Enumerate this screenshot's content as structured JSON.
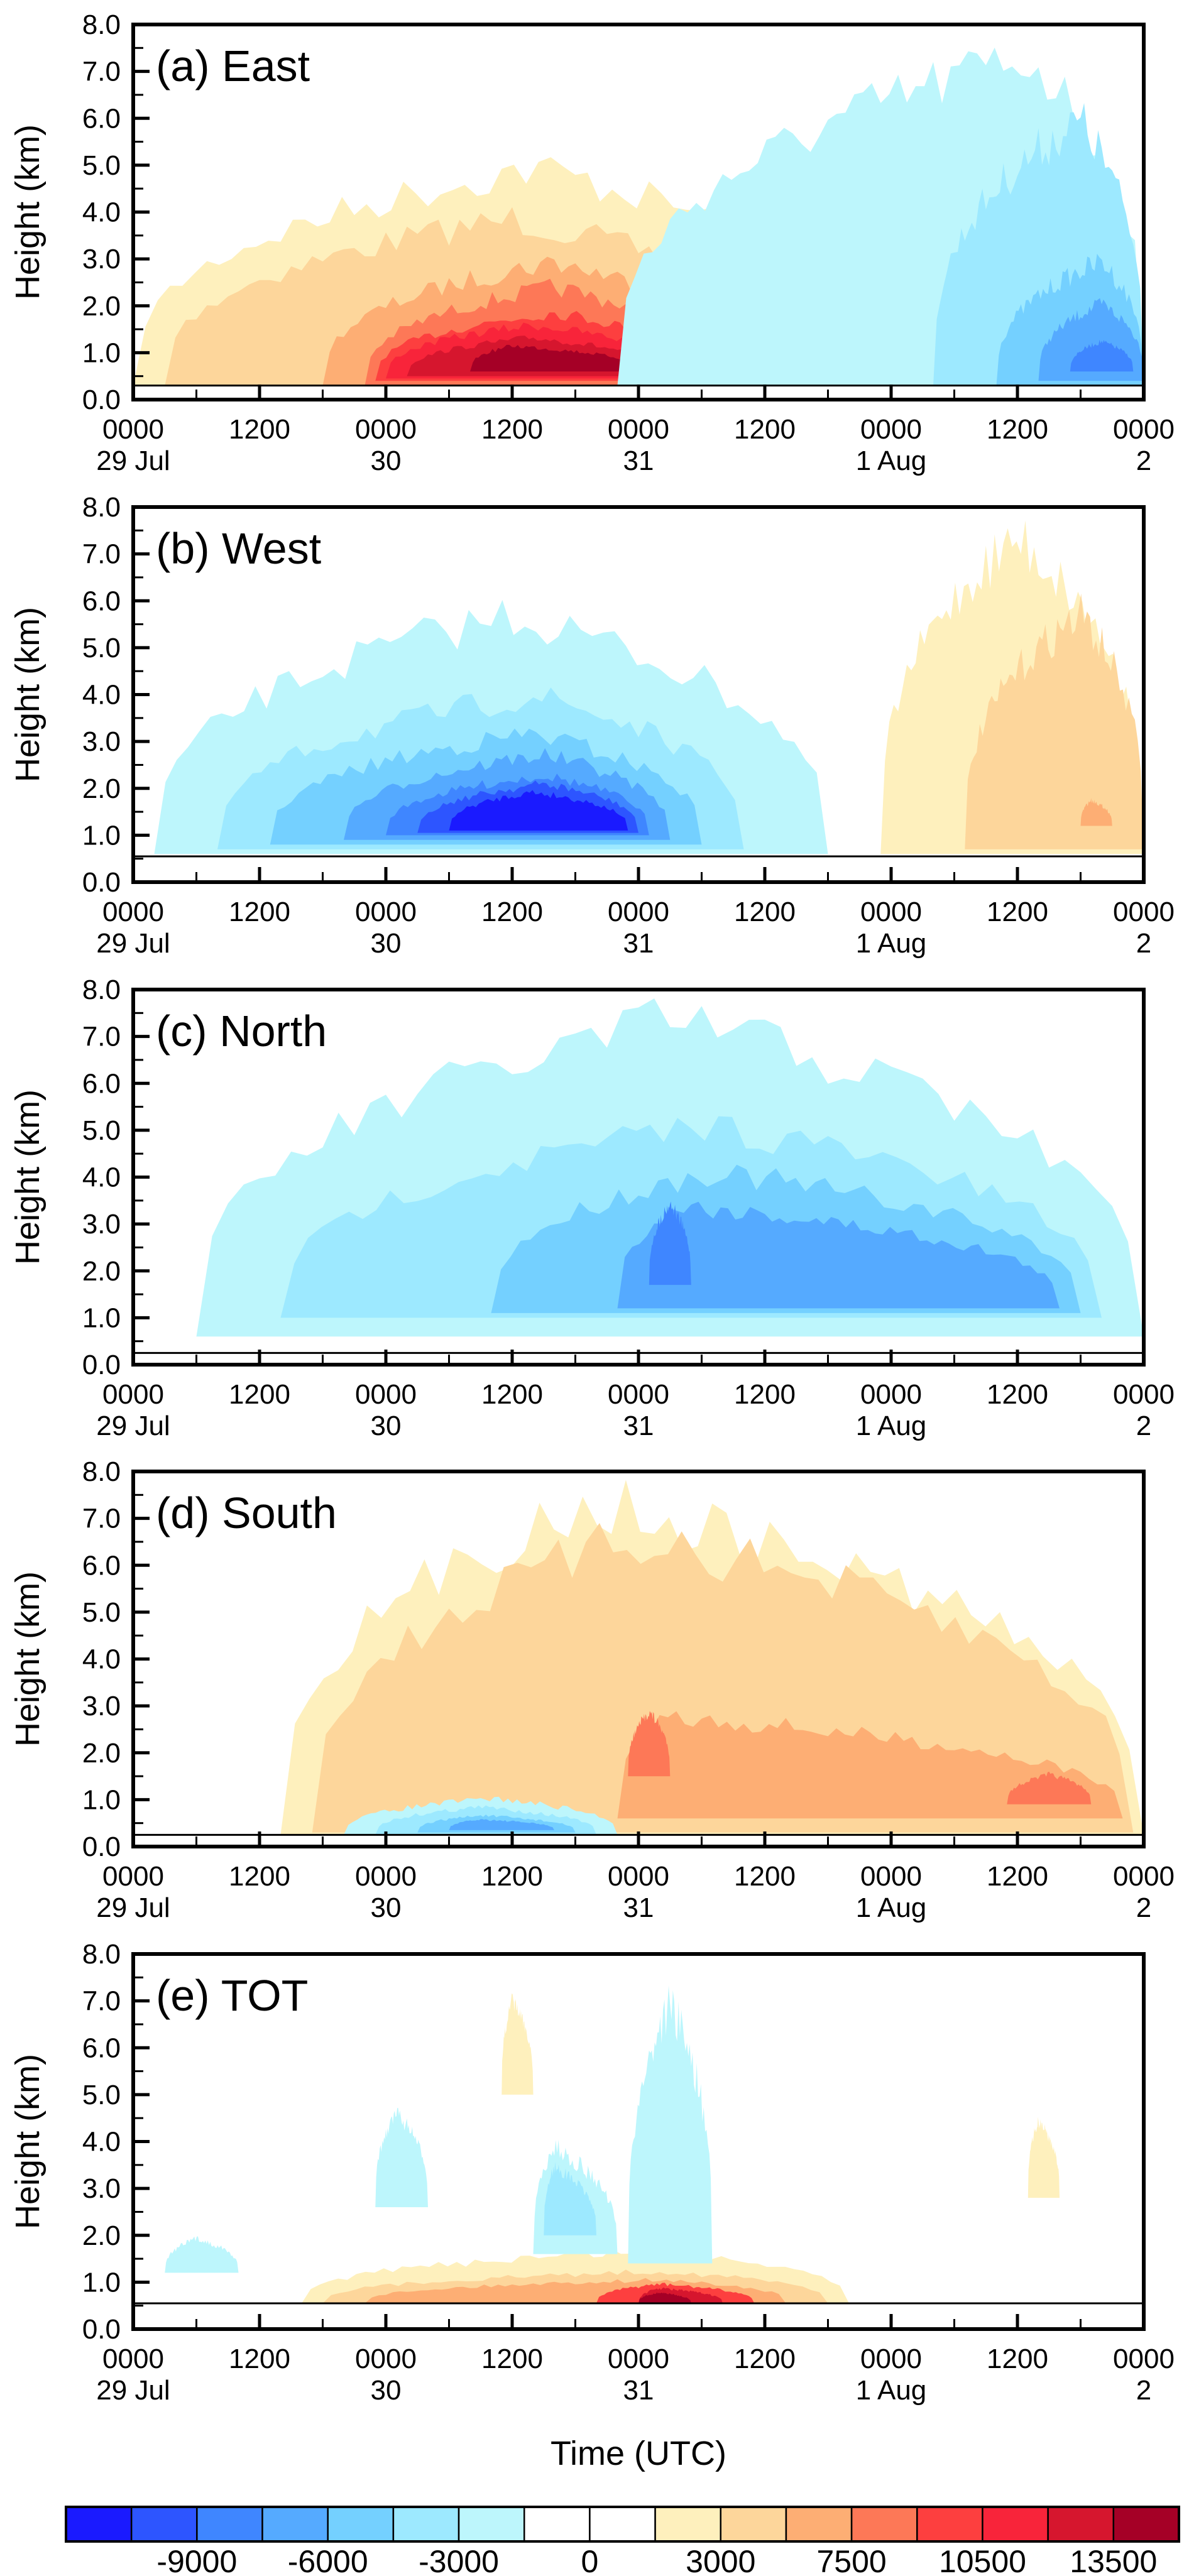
{
  "chart_data": {
    "type": "heatmap",
    "subtype": "filled-contour time-height sections",
    "xlabel": "Time (UTC)",
    "ylabel": "Height (km)",
    "ylim": [
      0,
      8
    ],
    "yticks": [
      "0.0",
      "1.0",
      "2.0",
      "3.0",
      "4.0",
      "5.0",
      "6.0",
      "7.0",
      "8.0"
    ],
    "xlim_hours": [
      0,
      96
    ],
    "xticks": [
      {
        "hour": 0,
        "time": "0000",
        "date": "29 Jul"
      },
      {
        "hour": 12,
        "time": "1200",
        "date": ""
      },
      {
        "hour": 24,
        "time": "0000",
        "date": "30"
      },
      {
        "hour": 36,
        "time": "1200",
        "date": ""
      },
      {
        "hour": 48,
        "time": "0000",
        "date": "31"
      },
      {
        "hour": 60,
        "time": "1200",
        "date": ""
      },
      {
        "hour": 72,
        "time": "0000",
        "date": "1 Aug"
      },
      {
        "hour": 84,
        "time": "1200",
        "date": ""
      },
      {
        "hour": 96,
        "time": "0000",
        "date": "2"
      }
    ],
    "minor_tick_interval_hours": 6,
    "colorbar": {
      "levels": [
        -10500,
        -9000,
        -7500,
        -6000,
        -4500,
        -3000,
        -1500,
        0,
        1500,
        3000,
        4500,
        7500,
        9000,
        10500,
        12000,
        13500
      ],
      "labels": [
        {
          "boundary": 1,
          "text": "-9000"
        },
        {
          "boundary": 3,
          "text": "-6000"
        },
        {
          "boundary": 5,
          "text": "-3000"
        },
        {
          "boundary": 7,
          "text": "0"
        },
        {
          "boundary": 9,
          "text": "3000"
        },
        {
          "boundary": 11,
          "text": "7500"
        },
        {
          "boundary": 13,
          "text": "10500"
        },
        {
          "boundary": 15,
          "text": "13500"
        }
      ],
      "colors": [
        "#1a1aff",
        "#2d55ff",
        "#3f86ff",
        "#55aaff",
        "#74d0ff",
        "#9de9ff",
        "#bdf6fc",
        "#ffffff",
        "#ffffff",
        "#fef0bd",
        "#fdd69b",
        "#fdae74",
        "#fd7857",
        "#fd3f3f",
        "#f8243a",
        "#d6162e",
        "#a50026"
      ]
    },
    "panels": [
      {
        "id": "a",
        "title": "(a) East",
        "terrain_km": 0.3,
        "blobs": [
          {
            "level": 9,
            "h0": 0,
            "h1": 70,
            "z0": 0.3,
            "z1": 5.4,
            "peak_h": 38
          },
          {
            "level": 10,
            "h0": 3,
            "h1": 63,
            "z0": 0.3,
            "z1": 4.2,
            "peak_h": 36
          },
          {
            "level": 11,
            "h0": 18,
            "h1": 58,
            "z0": 0.3,
            "z1": 3.2,
            "peak_h": 40
          },
          {
            "level": 12,
            "h0": 22,
            "h1": 55,
            "z0": 0.3,
            "z1": 2.6,
            "peak_h": 40
          },
          {
            "level": 13,
            "h0": 23,
            "h1": 54,
            "z0": 0.4,
            "z1": 2.0,
            "peak_h": 40
          },
          {
            "level": 14,
            "h0": 24,
            "h1": 52,
            "z0": 0.45,
            "z1": 1.7,
            "peak_h": 38
          },
          {
            "level": 15,
            "h0": 26,
            "h1": 50,
            "z0": 0.5,
            "z1": 1.4,
            "peak_h": 38
          },
          {
            "level": 16,
            "h0": 32,
            "h1": 48,
            "z0": 0.6,
            "z1": 1.2,
            "peak_h": 36
          },
          {
            "level": 6,
            "h0": 46,
            "h1": 96,
            "z0": 0.3,
            "z1": 8.0,
            "peak_h": 85
          },
          {
            "level": 5,
            "h0": 76,
            "h1": 96,
            "z0": 0.3,
            "z1": 6.5,
            "peak_h": 90
          },
          {
            "level": 4,
            "h0": 82,
            "h1": 96,
            "z0": 0.3,
            "z1": 3.2,
            "peak_h": 92
          },
          {
            "level": 3,
            "h0": 86,
            "h1": 96,
            "z0": 0.4,
            "z1": 2.2,
            "peak_h": 92
          },
          {
            "level": 2,
            "h0": 89,
            "h1": 95,
            "z0": 0.6,
            "z1": 1.3,
            "peak_h": 92
          }
        ]
      },
      {
        "id": "b",
        "title": "(b) West",
        "terrain_km": 0.55,
        "blobs": [
          {
            "level": 6,
            "h0": 2,
            "h1": 66,
            "z0": 0.6,
            "z1": 6.2,
            "peak_h": 36
          },
          {
            "level": 5,
            "h0": 8,
            "h1": 58,
            "z0": 0.7,
            "z1": 4.3,
            "peak_h": 38
          },
          {
            "level": 4,
            "h0": 13,
            "h1": 54,
            "z0": 0.8,
            "z1": 3.4,
            "peak_h": 38
          },
          {
            "level": 3,
            "h0": 20,
            "h1": 51,
            "z0": 0.9,
            "z1": 2.9,
            "peak_h": 39
          },
          {
            "level": 2,
            "h0": 24,
            "h1": 49,
            "z0": 1.0,
            "z1": 2.4,
            "peak_h": 39
          },
          {
            "level": 1,
            "h0": 27,
            "h1": 48,
            "z0": 1.05,
            "z1": 2.2,
            "peak_h": 39
          },
          {
            "level": 0,
            "h0": 30,
            "h1": 47,
            "z0": 1.1,
            "z1": 2.0,
            "peak_h": 38
          },
          {
            "level": 9,
            "h0": 71,
            "h1": 96,
            "z0": 0.6,
            "z1": 8.0,
            "peak_h": 84
          },
          {
            "level": 10,
            "h0": 79,
            "h1": 96,
            "z0": 0.7,
            "z1": 6.2,
            "peak_h": 90
          },
          {
            "level": 11,
            "h0": 90,
            "h1": 93,
            "z0": 1.2,
            "z1": 1.8,
            "peak_h": 91
          }
        ]
      },
      {
        "id": "c",
        "title": "(c) North",
        "terrain_km": 0.25,
        "blobs": [
          {
            "level": 6,
            "h0": 6,
            "h1": 96,
            "z0": 0.6,
            "z1": 8.0,
            "peak_h": 52
          },
          {
            "level": 5,
            "h0": 14,
            "h1": 92,
            "z0": 1.0,
            "z1": 5.5,
            "peak_h": 55
          },
          {
            "level": 4,
            "h0": 34,
            "h1": 90,
            "z0": 1.1,
            "z1": 4.4,
            "peak_h": 55
          },
          {
            "level": 3,
            "h0": 46,
            "h1": 88,
            "z0": 1.2,
            "z1": 3.6,
            "peak_h": 52
          },
          {
            "level": 2,
            "h0": 49,
            "h1": 53,
            "z0": 1.7,
            "z1": 3.6,
            "peak_h": 51
          }
        ]
      },
      {
        "id": "d",
        "title": "(d) South",
        "terrain_km": 0.25,
        "blobs": [
          {
            "level": 9,
            "h0": 14,
            "h1": 96,
            "z0": 0.25,
            "z1": 8.0,
            "peak_h": 44
          },
          {
            "level": 10,
            "h0": 17,
            "h1": 95,
            "z0": 0.3,
            "z1": 7.2,
            "peak_h": 48
          },
          {
            "level": 11,
            "h0": 46,
            "h1": 94,
            "z0": 0.6,
            "z1": 3.0,
            "peak_h": 50
          },
          {
            "level": 12,
            "h0": 47,
            "h1": 51,
            "z0": 1.5,
            "z1": 3.0,
            "peak_h": 49
          },
          {
            "level": 12,
            "h0": 83,
            "h1": 91,
            "z0": 0.9,
            "z1": 1.6,
            "peak_h": 87
          },
          {
            "level": 6,
            "h0": 20,
            "h1": 46,
            "z0": 0.25,
            "z1": 1.1,
            "peak_h": 34
          },
          {
            "level": 5,
            "h0": 23,
            "h1": 44,
            "z0": 0.25,
            "z1": 0.9,
            "peak_h": 33
          },
          {
            "level": 4,
            "h0": 27,
            "h1": 42,
            "z0": 0.3,
            "z1": 0.7,
            "peak_h": 33
          },
          {
            "level": 3,
            "h0": 30,
            "h1": 40,
            "z0": 0.35,
            "z1": 0.6,
            "peak_h": 33
          }
        ]
      },
      {
        "id": "e",
        "title": "(e) TOT",
        "terrain_km": 0.55,
        "blobs": [
          {
            "level": 9,
            "h0": 16,
            "h1": 68,
            "z0": 0.55,
            "z1": 1.8,
            "peak_h": 50
          },
          {
            "level": 10,
            "h0": 18,
            "h1": 66,
            "z0": 0.55,
            "z1": 1.3,
            "peak_h": 50
          },
          {
            "level": 11,
            "h0": 22,
            "h1": 62,
            "z0": 0.55,
            "z1": 1.1,
            "peak_h": 50
          },
          {
            "level": 13,
            "h0": 44,
            "h1": 59,
            "z0": 0.55,
            "z1": 1.0,
            "peak_h": 50
          },
          {
            "level": 15,
            "h0": 48,
            "h1": 56,
            "z0": 0.55,
            "z1": 0.9,
            "peak_h": 50
          },
          {
            "level": 16,
            "h0": 48,
            "h1": 53,
            "z0": 0.55,
            "z1": 0.8,
            "peak_h": 50
          },
          {
            "level": 6,
            "h0": 38,
            "h1": 46,
            "z0": 1.6,
            "z1": 4.1,
            "peak_h": 40
          },
          {
            "level": 5,
            "h0": 39,
            "h1": 44,
            "z0": 2.0,
            "z1": 3.6,
            "peak_h": 40
          },
          {
            "level": 6,
            "h0": 47,
            "h1": 55,
            "z0": 1.4,
            "z1": 7.5,
            "peak_h": 51
          },
          {
            "level": 6,
            "h0": 23,
            "h1": 28,
            "z0": 2.6,
            "z1": 4.8,
            "peak_h": 25
          },
          {
            "level": 6,
            "h0": 3,
            "h1": 10,
            "z0": 1.2,
            "z1": 2.0,
            "peak_h": 6
          },
          {
            "level": 9,
            "h0": 35,
            "h1": 38,
            "z0": 5.0,
            "z1": 7.2,
            "peak_h": 36
          },
          {
            "level": 9,
            "h0": 85,
            "h1": 88,
            "z0": 2.8,
            "z1": 4.6,
            "peak_h": 86
          }
        ]
      }
    ]
  }
}
